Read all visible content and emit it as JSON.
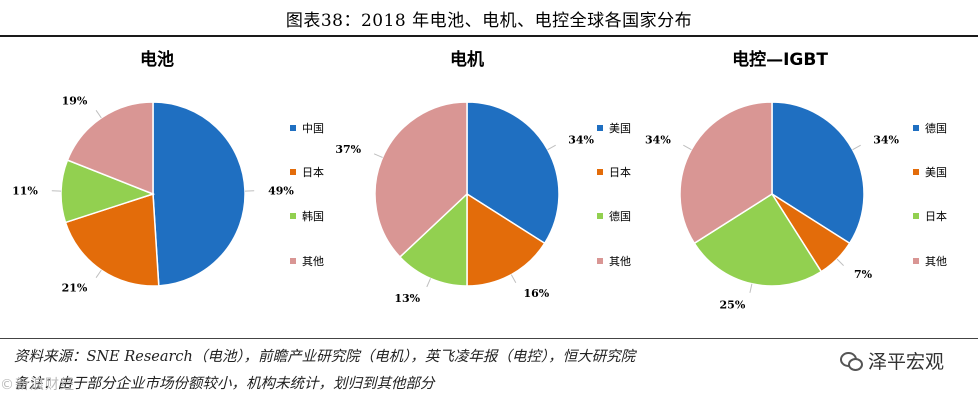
{
  "figure": {
    "title": "图表38：2018 年电池、电机、电控全球各国家分布",
    "source": "资料来源：SNE Research（电池），前瞻产业研究院（电机），英飞凌年报（电控），恒大研究院",
    "note": "备注：由于部分企业市场份额较小，机构未统计，划归到其他部分",
    "watermark": "泽平宏观",
    "watermark_icon": "wechat-icon",
    "corner_watermark": "©新浪财经"
  },
  "colors": {
    "blue": "#1f6fc1",
    "orange": "#e36c0a",
    "green": "#92d050",
    "pink": "#d99694"
  },
  "chart_data": [
    {
      "type": "pie",
      "title": "电池",
      "labels": [
        "中国",
        "日本",
        "韩国",
        "其他"
      ],
      "values": [
        49,
        21,
        11,
        19
      ],
      "value_labels": [
        "49%",
        "21%",
        "11%",
        "19%"
      ],
      "colors": [
        "#1f6fc1",
        "#e36c0a",
        "#92d050",
        "#d99694"
      ],
      "legend_position": "right"
    },
    {
      "type": "pie",
      "title": "电机",
      "labels": [
        "美国",
        "日本",
        "德国",
        "其他"
      ],
      "values": [
        34,
        16,
        13,
        37
      ],
      "value_labels": [
        "34%",
        "16%",
        "13%",
        "37%"
      ],
      "colors": [
        "#1f6fc1",
        "#e36c0a",
        "#92d050",
        "#d99694"
      ],
      "legend_position": "right"
    },
    {
      "type": "pie",
      "title": "电控—IGBT",
      "labels": [
        "德国",
        "美国",
        "日本",
        "其他"
      ],
      "values": [
        34,
        7,
        25,
        34
      ],
      "value_labels": [
        "34%",
        "7%",
        "25%",
        "34%"
      ],
      "colors": [
        "#1f6fc1",
        "#e36c0a",
        "#92d050",
        "#d99694"
      ],
      "legend_position": "right"
    }
  ]
}
